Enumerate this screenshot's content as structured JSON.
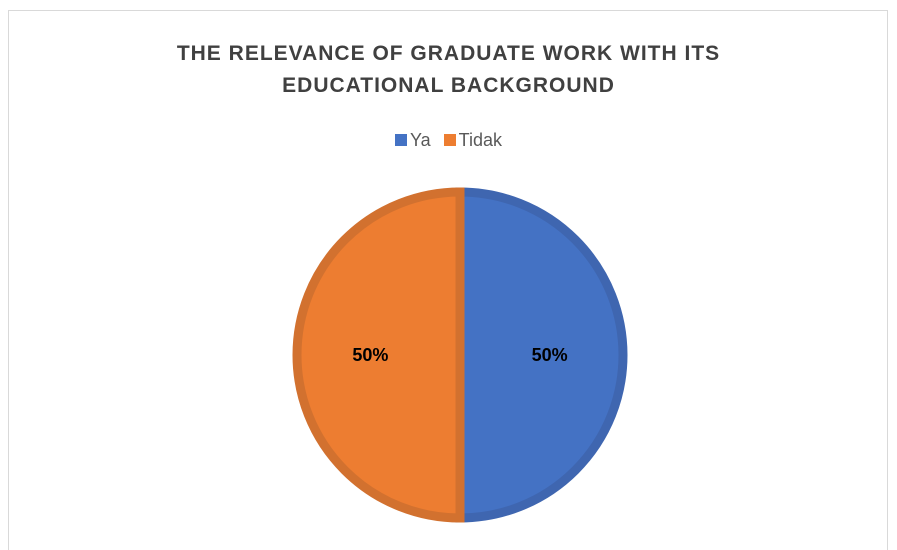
{
  "chart_data": {
    "type": "pie",
    "title": [
      "THE RELEVANCE OF GRADUATE WORK WITH ITS",
      "EDUCATIONAL BACKGROUND"
    ],
    "legend_position": "top",
    "slices": [
      {
        "label": "Ya",
        "value": 50,
        "display": "50%",
        "color": "#4472c4",
        "border": "#3f66b0"
      },
      {
        "label": "Tidak",
        "value": 50,
        "display": "50%",
        "color": "#ed7d31",
        "border": "#d2712f"
      }
    ]
  }
}
